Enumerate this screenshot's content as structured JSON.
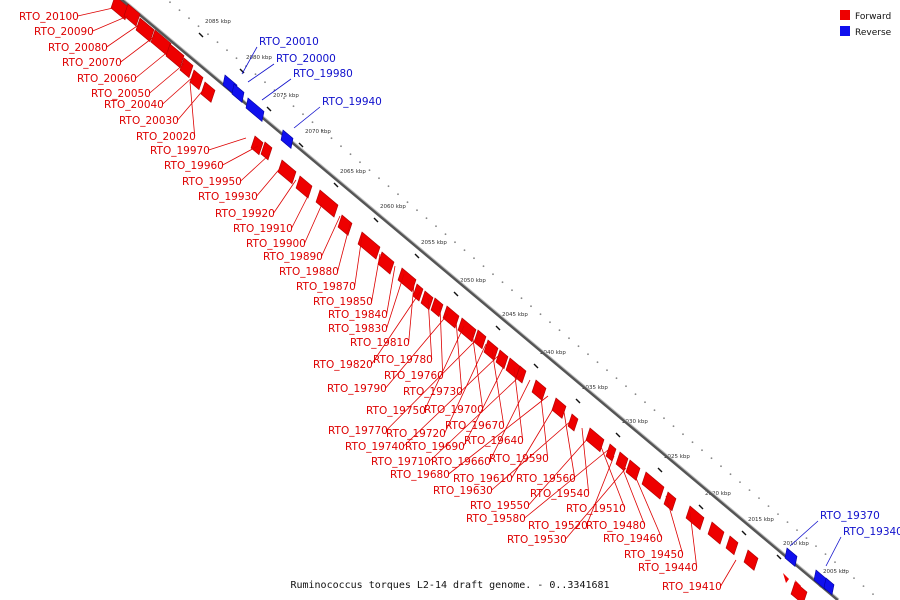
{
  "caption": "Ruminococcus torques L2-14 draft genome. - 0..3341681",
  "legend": [
    {
      "label": "Forward",
      "color": "#ee0000"
    },
    {
      "label": "Reverse",
      "color": "#1010ee"
    }
  ],
  "colors": {
    "forward": "#ee0000",
    "reverse": "#1010ee",
    "axis": "#666666"
  },
  "ticks": [
    "2085 kbp",
    "2080 kbp",
    "2075 kbp",
    "2070 kbp",
    "2065 kbp",
    "2060 kbp",
    "2055 kbp",
    "2050 kbp",
    "2045 kbp",
    "2040 kbp",
    "2035 kbp",
    "2030 kbp",
    "2025 kbp",
    "2020 kbp",
    "2015 kbp",
    "2010 kbp",
    "2005 kbp"
  ],
  "reverse_labels": [
    "RTO_20010",
    "RTO_20000",
    "RTO_19980",
    "RTO_19940",
    "RTO_19370",
    "RTO_19340"
  ],
  "forward_labels": [
    "RTO_20100",
    "RTO_20090",
    "RTO_20080",
    "RTO_20070",
    "RTO_20060",
    "RTO_20050",
    "RTO_20040",
    "RTO_20030",
    "RTO_20020",
    "RTO_19970",
    "RTO_19960",
    "RTO_19950",
    "RTO_19930",
    "RTO_19920",
    "RTO_19910",
    "RTO_19900",
    "RTO_19890",
    "RTO_19880",
    "RTO_19870",
    "RTO_19850",
    "RTO_19840",
    "RTO_19830",
    "RTO_19810",
    "RTO_19820",
    "RTO_19780",
    "RTO_19760",
    "RTO_19790",
    "RTO_19730",
    "RTO_19750",
    "RTO_19700",
    "RTO_19770",
    "RTO_19720",
    "RTO_19670",
    "RTO_19740",
    "RTO_19690",
    "RTO_19640",
    "RTO_19710",
    "RTO_19660",
    "RTO_19590",
    "RTO_19680",
    "RTO_19610",
    "RTO_19560",
    "RTO_19630",
    "RTO_19540",
    "RTO_19550",
    "RTO_19510",
    "RTO_19580",
    "RTO_19520",
    "RTO_19480",
    "RTO_19530",
    "RTO_19460",
    "RTO_19450",
    "RTO_19440",
    "RTO_19410"
  ]
}
